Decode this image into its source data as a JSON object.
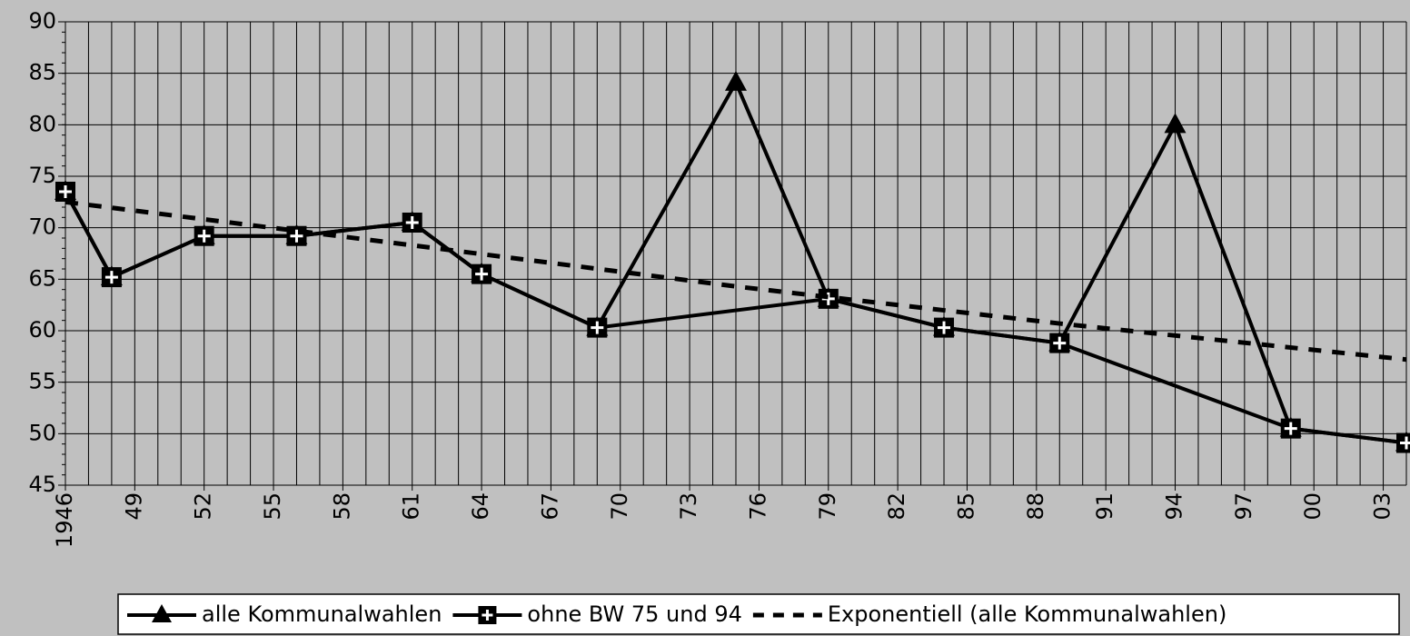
{
  "chart_data": {
    "type": "line",
    "xlim": [
      1946,
      2004
    ],
    "xticks": [
      1946,
      {
        "value": 1949,
        "label": "49"
      },
      {
        "value": 1952,
        "label": "52"
      },
      {
        "value": 1955,
        "label": "55"
      },
      {
        "value": 1958,
        "label": "58"
      },
      {
        "value": 1961,
        "label": "61"
      },
      {
        "value": 1964,
        "label": "64"
      },
      {
        "value": 1967,
        "label": "67"
      },
      {
        "value": 1970,
        "label": "70"
      },
      {
        "value": 1973,
        "label": "73"
      },
      {
        "value": 1976,
        "label": "76"
      },
      {
        "value": 1979,
        "label": "79"
      },
      {
        "value": 1982,
        "label": "82"
      },
      {
        "value": 1985,
        "label": "85"
      },
      {
        "value": 1988,
        "label": "88"
      },
      {
        "value": 1991,
        "label": "91"
      },
      {
        "value": 1994,
        "label": "94"
      },
      {
        "value": 1997,
        "label": "97"
      },
      {
        "value": 2000,
        "label": "00"
      },
      {
        "value": 2003,
        "label": "03"
      }
    ],
    "xminor": 1,
    "ylim": [
      45,
      90
    ],
    "yticks": [
      45,
      50,
      55,
      60,
      65,
      70,
      75,
      80,
      85,
      90
    ],
    "grid": true,
    "legend": "bottom",
    "series": [
      {
        "name": "alle Kommunalwahlen",
        "color": "#000000",
        "marker": "triangle",
        "style": "solid",
        "x": [
          1946,
          1948,
          1952,
          1956,
          1961,
          1964,
          1969,
          1975,
          1979,
          1984,
          1989,
          1994,
          1999,
          2004
        ],
        "values": [
          73.5,
          65.2,
          69.2,
          69.2,
          70.5,
          65.5,
          60.3,
          84.1,
          63.1,
          60.3,
          58.8,
          80.0,
          50.5,
          49.1
        ]
      },
      {
        "name": "ohne BW 75 und 94",
        "color": "#000000",
        "marker": "square-plus",
        "style": "solid",
        "x": [
          1946,
          1948,
          1952,
          1956,
          1961,
          1964,
          1969,
          1979,
          1984,
          1989,
          1999,
          2004
        ],
        "values": [
          73.5,
          65.2,
          69.2,
          69.2,
          70.5,
          65.5,
          60.3,
          63.1,
          60.3,
          58.8,
          50.5,
          49.1
        ]
      },
      {
        "name": "Exponentiell (alle Kommunalwahlen)",
        "color": "#000000",
        "marker": "none",
        "style": "dashed",
        "x": [
          1946,
          1961,
          1975,
          1989,
          2004
        ],
        "values": [
          72.5,
          68.3,
          64.3,
          60.7,
          57.2
        ]
      }
    ]
  }
}
